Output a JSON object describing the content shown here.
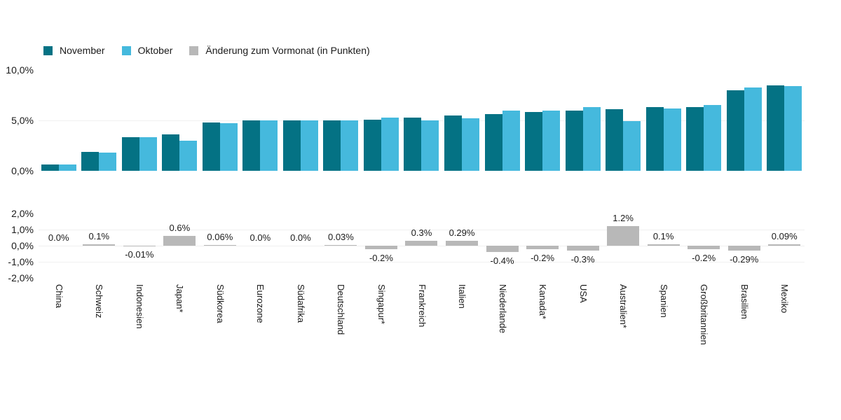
{
  "legend": {
    "items": [
      {
        "label": "November",
        "color": "#047284"
      },
      {
        "label": "Oktober",
        "color": "#45b9dd"
      },
      {
        "label": "Änderung zum Vormonat (in Punkten)",
        "color": "#b8b8b8"
      }
    ]
  },
  "chart_data": [
    {
      "type": "bar",
      "title": "",
      "categories": [
        "China",
        "Schweiz",
        "Indonesien",
        "Japan*",
        "Südkorea",
        "Eurozone",
        "Südafrika",
        "Deutschland",
        "Singapur*",
        "Frankreich",
        "Italien",
        "Niederlande",
        "Kanada*",
        "USA",
        "Australien*",
        "Spanien",
        "Großbritannien",
        "Brasilien",
        "Mexiko"
      ],
      "series": [
        {
          "name": "November",
          "color": "#047284",
          "values": [
            0.6,
            1.9,
            3.3,
            3.6,
            4.8,
            5.0,
            5.0,
            5.03,
            5.1,
            5.3,
            5.5,
            5.6,
            5.8,
            6.0,
            6.1,
            6.3,
            6.3,
            8.0,
            8.5
          ]
        },
        {
          "name": "Oktober",
          "color": "#45b9dd",
          "values": [
            0.6,
            1.8,
            3.31,
            3.0,
            4.74,
            5.0,
            5.0,
            5.0,
            5.3,
            5.0,
            5.21,
            6.0,
            6.0,
            6.3,
            4.9,
            6.2,
            6.5,
            8.29,
            8.41
          ]
        }
      ],
      "ylim": [
        0,
        10
      ],
      "yticks": [
        {
          "label": "10,0%",
          "value": 10
        },
        {
          "label": "5,0%",
          "value": 5
        },
        {
          "label": "0,0%",
          "value": 0
        }
      ],
      "gridlines": [
        5
      ],
      "grid": "horizontal-light",
      "legend_position": "top"
    },
    {
      "type": "bar",
      "name": "Änderung zum Vormonat (in Punkten)",
      "color": "#b8b8b8",
      "categories": [
        "China",
        "Schweiz",
        "Indonesien",
        "Japan*",
        "Südkorea",
        "Eurozone",
        "Südafrika",
        "Deutschland",
        "Singapur*",
        "Frankreich",
        "Italien",
        "Niederlande",
        "Kanada*",
        "USA",
        "Australien*",
        "Spanien",
        "Großbritannien",
        "Brasilien",
        "Mexiko"
      ],
      "values": [
        0.0,
        0.1,
        -0.01,
        0.6,
        0.06,
        0.0,
        0.0,
        0.03,
        -0.2,
        0.3,
        0.29,
        -0.4,
        -0.2,
        -0.3,
        1.2,
        0.1,
        -0.2,
        -0.29,
        0.09
      ],
      "value_labels": [
        "0.0%",
        "0.1%",
        "-0.01%",
        "0.6%",
        "0.06%",
        "0.0%",
        "0.0%",
        "0.03%",
        "-0.2%",
        "0.3%",
        "0.29%",
        "-0.4%",
        "-0.2%",
        "-0.3%",
        "1.2%",
        "0.1%",
        "-0.2%",
        "-0.29%",
        "0.09%"
      ],
      "ylim": [
        -2,
        2
      ],
      "yticks": [
        {
          "label": "2,0%",
          "value": 2
        },
        {
          "label": "1,0%",
          "value": 1
        },
        {
          "label": "0,0%",
          "value": 0
        },
        {
          "label": "-1,0%",
          "value": -1
        },
        {
          "label": "-2,0%",
          "value": -2
        }
      ],
      "gridlines": [
        1,
        0,
        -1
      ],
      "grid": "horizontal-light"
    }
  ]
}
